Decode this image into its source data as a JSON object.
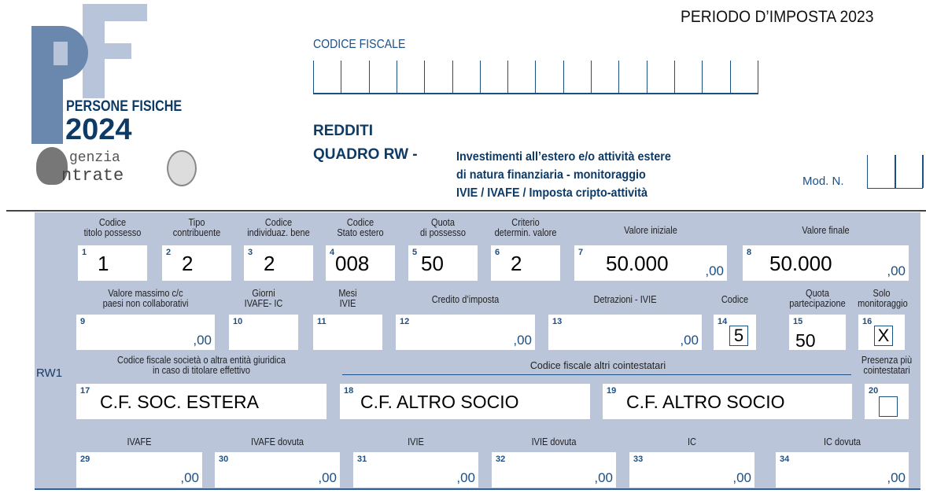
{
  "header": {
    "period": "PERIODO D’IMPOSTA 2023",
    "codice_fiscale_label": "CODICE FISCALE",
    "logo": {
      "letters": "PF",
      "line1": "PERSONE FISICHE",
      "line2": "2024",
      "agency1": "genzia",
      "agency2": "ntrate"
    },
    "redditi": "REDDITI",
    "quadro": "QUADRO RW -",
    "desc1": "Investimenti all’estero e/o attività estere",
    "desc2": "di natura finanziaria - monitoraggio",
    "desc3": "IVIE / IVAFE / Imposta cripto-attività",
    "mod_label": "Mod. N."
  },
  "colors": {
    "panel": "#bac5da",
    "brand": "#0d3b66",
    "logo_dark": "#6a87ad",
    "logo_light": "#b7c4da"
  },
  "row_label": "RW1",
  "cointestatari_label": "Codice fiscale altri cointestatari",
  "fields": [
    {
      "num": "1",
      "label": "Codice\ntitolo possesso",
      "value": "1"
    },
    {
      "num": "2",
      "label": "Tipo\ncontribuente",
      "value": "2"
    },
    {
      "num": "3",
      "label": "Codice\nindividuaz. bene",
      "value": "2"
    },
    {
      "num": "4",
      "label": "Codice\nStato estero",
      "value": "008"
    },
    {
      "num": "5",
      "label": "Quota\ndi possesso",
      "value": "50"
    },
    {
      "num": "6",
      "label": "Criterio\ndetermin. valore",
      "value": "2"
    },
    {
      "num": "7",
      "label": "Valore iniziale",
      "value": "50.000",
      "decimals": ",00"
    },
    {
      "num": "8",
      "label": "Valore finale",
      "value": "50.000",
      "decimals": ",00"
    },
    {
      "num": "9",
      "label": "Valore massimo c/c\npaesi non collaborativi",
      "value": "",
      "decimals": ",00"
    },
    {
      "num": "10",
      "label": "Giorni\nIVAFE- IC",
      "value": ""
    },
    {
      "num": "11",
      "label": "Mesi\nIVIE",
      "value": ""
    },
    {
      "num": "12",
      "label": "Credito d’imposta",
      "value": "",
      "decimals": ",00"
    },
    {
      "num": "13",
      "label": "Detrazioni - IVIE",
      "value": "",
      "decimals": ",00"
    },
    {
      "num": "14",
      "label": "Codice",
      "value": "5"
    },
    {
      "num": "15",
      "label": "Quota\npartecipazione",
      "value": "50"
    },
    {
      "num": "16",
      "label": "Solo\nmonitoraggio",
      "value": "X"
    },
    {
      "num": "17",
      "label": "Codice fiscale società o altra entità giuridica\nin caso di titolare effettivo",
      "value": "C.F. SOC. ESTERA"
    },
    {
      "num": "18",
      "label": "",
      "value": "C.F. ALTRO SOCIO"
    },
    {
      "num": "19",
      "label": "",
      "value": "C.F. ALTRO SOCIO"
    },
    {
      "num": "20",
      "label": "Presenza più\ncointestatari",
      "value": ""
    },
    {
      "num": "29",
      "label": "IVAFE",
      "value": "",
      "decimals": ",00"
    },
    {
      "num": "30",
      "label": "IVAFE dovuta",
      "value": "",
      "decimals": ",00"
    },
    {
      "num": "31",
      "label": "IVIE",
      "value": "",
      "decimals": ",00"
    },
    {
      "num": "32",
      "label": "IVIE dovuta",
      "value": "",
      "decimals": ",00"
    },
    {
      "num": "33",
      "label": "IC",
      "value": "",
      "decimals": ",00"
    },
    {
      "num": "34",
      "label": "IC dovuta",
      "value": "",
      "decimals": ",00"
    }
  ]
}
